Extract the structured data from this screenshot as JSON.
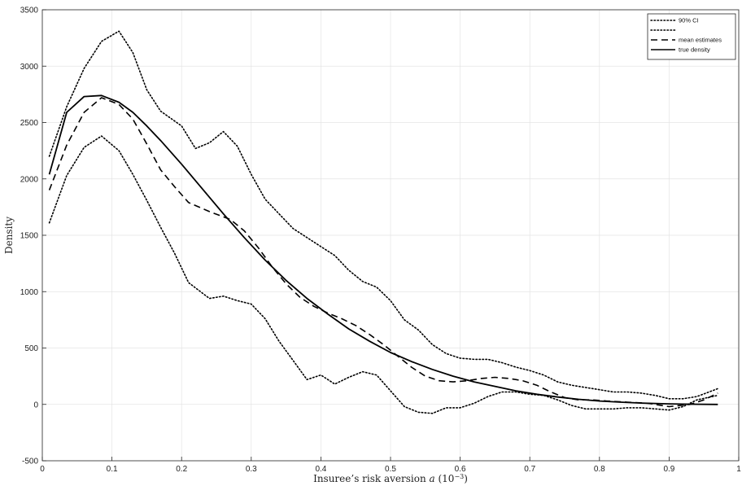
{
  "chart_data": {
    "type": "line",
    "title": "",
    "xlabel": "Insuree’s risk aversion a (10−3)",
    "xlabel_parts": {
      "main": "Insuree’s risk aversion ",
      "var": "a",
      "unit_open": " (10",
      "unit_exp": "−3",
      "unit_close": ")"
    },
    "ylabel": "Density",
    "xlim": [
      0,
      1
    ],
    "ylim": [
      -500,
      3500
    ],
    "xticks": [
      0,
      0.1,
      0.2,
      0.3,
      0.4,
      0.5,
      0.6,
      0.7,
      0.8,
      0.9,
      1
    ],
    "xtick_labels": [
      "0",
      "0.1",
      "0.2",
      "0.3",
      "0.4",
      "0.5",
      "0.6",
      "0.7",
      "0.8",
      "0.9",
      "1"
    ],
    "yticks": [
      -500,
      0,
      500,
      1000,
      1500,
      2000,
      2500,
      3000,
      3500
    ],
    "ytick_labels": [
      "-500",
      "0",
      "500",
      "1000",
      "1500",
      "2000",
      "2500",
      "3000",
      "3500"
    ],
    "grid": true,
    "legend_position": "top-right",
    "series": [
      {
        "name": "90% CI",
        "style": "dotted",
        "color": "#000000",
        "points": [
          [
            0.01,
            2200
          ],
          [
            0.035,
            2640
          ],
          [
            0.06,
            2980
          ],
          [
            0.085,
            3220
          ],
          [
            0.11,
            3310
          ],
          [
            0.13,
            3120
          ],
          [
            0.15,
            2790
          ],
          [
            0.17,
            2600
          ],
          [
            0.2,
            2470
          ],
          [
            0.22,
            2270
          ],
          [
            0.24,
            2320
          ],
          [
            0.26,
            2420
          ],
          [
            0.28,
            2290
          ],
          [
            0.3,
            2040
          ],
          [
            0.32,
            1820
          ],
          [
            0.34,
            1690
          ],
          [
            0.36,
            1560
          ],
          [
            0.38,
            1480
          ],
          [
            0.4,
            1400
          ],
          [
            0.42,
            1320
          ],
          [
            0.44,
            1190
          ],
          [
            0.46,
            1090
          ],
          [
            0.48,
            1040
          ],
          [
            0.5,
            920
          ],
          [
            0.52,
            750
          ],
          [
            0.54,
            660
          ],
          [
            0.56,
            530
          ],
          [
            0.58,
            450
          ],
          [
            0.6,
            410
          ],
          [
            0.62,
            400
          ],
          [
            0.64,
            400
          ],
          [
            0.66,
            370
          ],
          [
            0.68,
            330
          ],
          [
            0.7,
            300
          ],
          [
            0.72,
            260
          ],
          [
            0.74,
            200
          ],
          [
            0.76,
            170
          ],
          [
            0.78,
            150
          ],
          [
            0.8,
            130
          ],
          [
            0.82,
            110
          ],
          [
            0.84,
            110
          ],
          [
            0.86,
            100
          ],
          [
            0.88,
            80
          ],
          [
            0.9,
            50
          ],
          [
            0.92,
            50
          ],
          [
            0.94,
            70
          ],
          [
            0.97,
            140
          ]
        ]
      },
      {
        "name": "",
        "style": "dotted",
        "color": "#000000",
        "points": [
          [
            0.01,
            1610
          ],
          [
            0.035,
            2030
          ],
          [
            0.06,
            2280
          ],
          [
            0.085,
            2380
          ],
          [
            0.11,
            2250
          ],
          [
            0.13,
            2040
          ],
          [
            0.15,
            1810
          ],
          [
            0.17,
            1570
          ],
          [
            0.19,
            1340
          ],
          [
            0.21,
            1080
          ],
          [
            0.24,
            940
          ],
          [
            0.26,
            960
          ],
          [
            0.28,
            920
          ],
          [
            0.3,
            890
          ],
          [
            0.32,
            760
          ],
          [
            0.34,
            560
          ],
          [
            0.36,
            390
          ],
          [
            0.38,
            220
          ],
          [
            0.4,
            260
          ],
          [
            0.42,
            180
          ],
          [
            0.44,
            240
          ],
          [
            0.46,
            290
          ],
          [
            0.48,
            260
          ],
          [
            0.5,
            120
          ],
          [
            0.52,
            -20
          ],
          [
            0.54,
            -70
          ],
          [
            0.56,
            -80
          ],
          [
            0.58,
            -30
          ],
          [
            0.6,
            -30
          ],
          [
            0.62,
            10
          ],
          [
            0.64,
            70
          ],
          [
            0.66,
            110
          ],
          [
            0.68,
            110
          ],
          [
            0.7,
            90
          ],
          [
            0.72,
            80
          ],
          [
            0.74,
            40
          ],
          [
            0.76,
            -10
          ],
          [
            0.78,
            -40
          ],
          [
            0.8,
            -40
          ],
          [
            0.82,
            -40
          ],
          [
            0.84,
            -30
          ],
          [
            0.86,
            -30
          ],
          [
            0.88,
            -40
          ],
          [
            0.9,
            -50
          ],
          [
            0.92,
            -20
          ],
          [
            0.94,
            40
          ],
          [
            0.97,
            80
          ]
        ]
      },
      {
        "name": "mean estimates",
        "style": "dashed",
        "color": "#000000",
        "points": [
          [
            0.01,
            1900
          ],
          [
            0.035,
            2300
          ],
          [
            0.06,
            2590
          ],
          [
            0.085,
            2720
          ],
          [
            0.11,
            2660
          ],
          [
            0.13,
            2530
          ],
          [
            0.15,
            2310
          ],
          [
            0.17,
            2080
          ],
          [
            0.19,
            1930
          ],
          [
            0.21,
            1790
          ],
          [
            0.24,
            1710
          ],
          [
            0.27,
            1640
          ],
          [
            0.29,
            1540
          ],
          [
            0.31,
            1390
          ],
          [
            0.33,
            1220
          ],
          [
            0.35,
            1070
          ],
          [
            0.37,
            950
          ],
          [
            0.39,
            870
          ],
          [
            0.41,
            810
          ],
          [
            0.43,
            760
          ],
          [
            0.45,
            700
          ],
          [
            0.47,
            620
          ],
          [
            0.49,
            530
          ],
          [
            0.51,
            430
          ],
          [
            0.53,
            330
          ],
          [
            0.55,
            250
          ],
          [
            0.57,
            210
          ],
          [
            0.59,
            200
          ],
          [
            0.61,
            210
          ],
          [
            0.63,
            230
          ],
          [
            0.65,
            240
          ],
          [
            0.67,
            230
          ],
          [
            0.69,
            210
          ],
          [
            0.71,
            170
          ],
          [
            0.73,
            110
          ],
          [
            0.75,
            60
          ],
          [
            0.77,
            40
          ],
          [
            0.79,
            40
          ],
          [
            0.81,
            30
          ],
          [
            0.84,
            20
          ],
          [
            0.87,
            10
          ],
          [
            0.9,
            -20
          ],
          [
            0.93,
            0
          ],
          [
            0.95,
            40
          ],
          [
            0.97,
            100
          ]
        ]
      },
      {
        "name": "true density",
        "style": "solid",
        "color": "#000000",
        "points": [
          [
            0.01,
            2040
          ],
          [
            0.035,
            2590
          ],
          [
            0.06,
            2730
          ],
          [
            0.085,
            2740
          ],
          [
            0.11,
            2680
          ],
          [
            0.13,
            2590
          ],
          [
            0.15,
            2470
          ],
          [
            0.17,
            2340
          ],
          [
            0.2,
            2130
          ],
          [
            0.23,
            1910
          ],
          [
            0.26,
            1690
          ],
          [
            0.29,
            1480
          ],
          [
            0.32,
            1280
          ],
          [
            0.35,
            1100
          ],
          [
            0.38,
            940
          ],
          [
            0.41,
            800
          ],
          [
            0.44,
            670
          ],
          [
            0.47,
            560
          ],
          [
            0.5,
            460
          ],
          [
            0.53,
            380
          ],
          [
            0.56,
            310
          ],
          [
            0.59,
            250
          ],
          [
            0.62,
            200
          ],
          [
            0.65,
            160
          ],
          [
            0.68,
            120
          ],
          [
            0.71,
            90
          ],
          [
            0.74,
            65
          ],
          [
            0.77,
            45
          ],
          [
            0.8,
            30
          ],
          [
            0.83,
            20
          ],
          [
            0.86,
            12
          ],
          [
            0.9,
            5
          ],
          [
            0.93,
            2
          ],
          [
            0.97,
            0
          ]
        ]
      }
    ]
  }
}
